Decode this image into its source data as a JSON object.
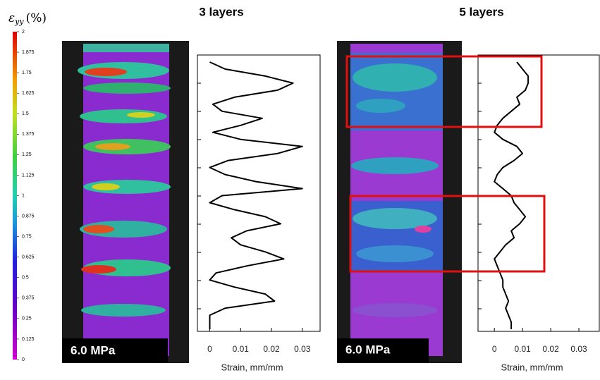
{
  "colorbar": {
    "symbol": "ε",
    "subscript": "yy",
    "unit": "(%)",
    "range": [
      0,
      2
    ],
    "ticks": [
      2,
      1.875,
      1.75,
      1.625,
      1.5,
      1.375,
      1.25,
      1.125,
      1,
      0.875,
      0.75,
      0.625,
      0.5,
      0.375,
      0.25,
      0.125,
      0
    ]
  },
  "panels": [
    {
      "title": "3 layers",
      "stress_label": "6.0 MPa",
      "profile": {
        "type": "line",
        "xlabel": "Strain, mm/mm",
        "xlim": [
          -0.004,
          0.036
        ],
        "xticks": [
          0,
          0.01,
          0.02,
          0.03
        ],
        "color": "#000000",
        "values": [
          0.0,
          0.005,
          0.018,
          0.027,
          0.022,
          0.008,
          0.001,
          0.004,
          0.017,
          0.01,
          0.001,
          0.01,
          0.03,
          0.022,
          0.006,
          0.0,
          0.005,
          0.015,
          0.03,
          0.004,
          0.0,
          0.008,
          0.018,
          0.023,
          0.012,
          0.007,
          0.01,
          0.018,
          0.024,
          0.012,
          0.002,
          0.0,
          0.008,
          0.018,
          0.021,
          0.005,
          0.0,
          0.0,
          0.0
        ]
      }
    },
    {
      "title": "5 layers",
      "stress_label": "6.0 MPa",
      "profile": {
        "type": "line",
        "xlabel": "Strain, mm/mm",
        "xlim": [
          -0.0058,
          0.0375
        ],
        "xticks": [
          0,
          0.01,
          0.02,
          0.03
        ],
        "color": "#000000",
        "values": [
          0.008,
          0.01,
          0.012,
          0.012,
          0.011,
          0.008,
          0.009,
          0.006,
          0.003,
          0.001,
          0.0,
          0.003,
          0.008,
          0.01,
          0.007,
          0.003,
          0.001,
          0.0,
          0.003,
          0.006,
          0.007,
          0.009,
          0.011,
          0.009,
          0.006,
          0.007,
          0.004,
          0.002,
          0.0,
          0.001,
          0.002,
          0.003,
          0.003,
          0.004,
          0.005,
          0.004,
          0.005,
          0.006,
          0.006
        ]
      }
    }
  ]
}
